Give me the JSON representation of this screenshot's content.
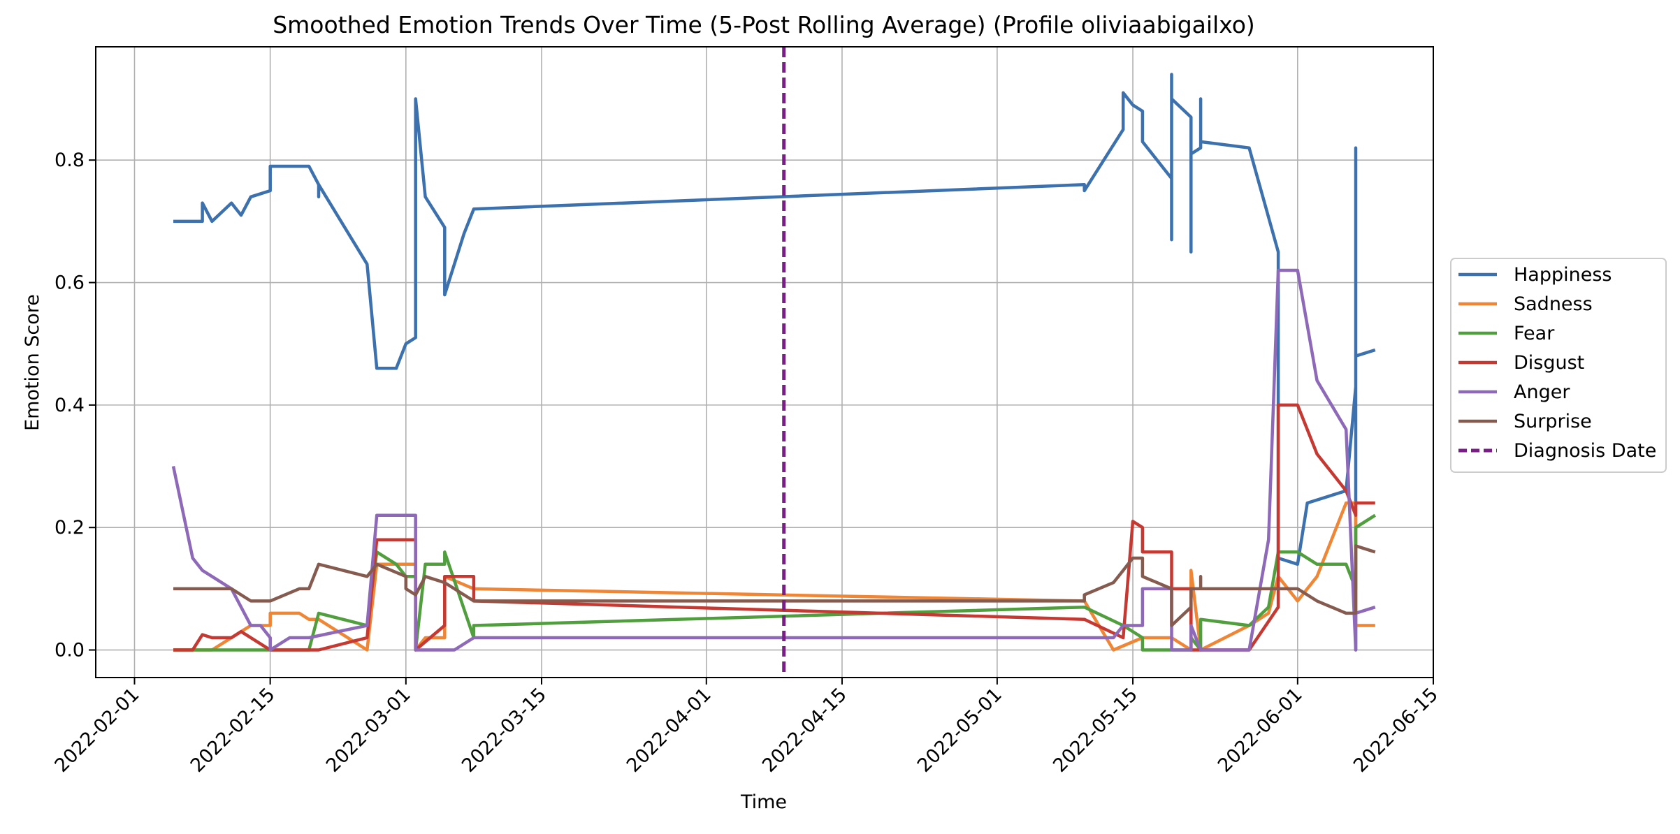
{
  "chart_data": {
    "type": "line",
    "title": "Smoothed Emotion Trends Over Time (5-Post Rolling Average) (Profile oliviaabigailxo)",
    "xlabel": "Time",
    "ylabel": "Emotion Score",
    "xlim": [
      "2022-01-28",
      "2022-06-15"
    ],
    "ylim": [
      -0.045,
      0.985
    ],
    "x_ticks": [
      "2022-02-01",
      "2022-02-15",
      "2022-03-01",
      "2022-03-15",
      "2022-04-01",
      "2022-04-15",
      "2022-05-01",
      "2022-05-15",
      "2022-06-01",
      "2022-06-15"
    ],
    "y_ticks": [
      0.0,
      0.2,
      0.4,
      0.6,
      0.8
    ],
    "grid": true,
    "legend_position": "center-right, outside plot",
    "diagnosis_date": "2022-04-09",
    "series": [
      {
        "name": "Happiness",
        "color": "#3c71ad",
        "points": [
          [
            "2022-02-05",
            0.7
          ],
          [
            "2022-02-08",
            0.7
          ],
          [
            "2022-02-08",
            0.73
          ],
          [
            "2022-02-09",
            0.7
          ],
          [
            "2022-02-11",
            0.73
          ],
          [
            "2022-02-12",
            0.71
          ],
          [
            "2022-02-13",
            0.74
          ],
          [
            "2022-02-15",
            0.75
          ],
          [
            "2022-02-15",
            0.79
          ],
          [
            "2022-02-19",
            0.79
          ],
          [
            "2022-02-20",
            0.76
          ],
          [
            "2022-02-20",
            0.74
          ],
          [
            "2022-02-20",
            0.76
          ],
          [
            "2022-02-25",
            0.63
          ],
          [
            "2022-02-26",
            0.46
          ],
          [
            "2022-02-28",
            0.46
          ],
          [
            "2022-02-29",
            0.5
          ],
          [
            "2022-03-02",
            0.51
          ],
          [
            "2022-03-02",
            0.9
          ],
          [
            "2022-03-03",
            0.74
          ],
          [
            "2022-03-05",
            0.69
          ],
          [
            "2022-03-05",
            0.64
          ],
          [
            "2022-03-05",
            0.58
          ],
          [
            "2022-03-07",
            0.68
          ],
          [
            "2022-03-08",
            0.72
          ],
          [
            "2022-05-10",
            0.76
          ],
          [
            "2022-05-10",
            0.75
          ],
          [
            "2022-05-14",
            0.85
          ],
          [
            "2022-05-14",
            0.91
          ],
          [
            "2022-05-15",
            0.89
          ],
          [
            "2022-05-16",
            0.88
          ],
          [
            "2022-05-16",
            0.83
          ],
          [
            "2022-05-19",
            0.77
          ],
          [
            "2022-05-19",
            0.67
          ],
          [
            "2022-05-19",
            0.94
          ],
          [
            "2022-05-19",
            0.9
          ],
          [
            "2022-05-21",
            0.87
          ],
          [
            "2022-05-21",
            0.8
          ],
          [
            "2022-05-21",
            0.67
          ],
          [
            "2022-05-21",
            0.65
          ],
          [
            "2022-05-21",
            0.81
          ],
          [
            "2022-05-22",
            0.82
          ],
          [
            "2022-05-22",
            0.9
          ],
          [
            "2022-05-22",
            0.83
          ],
          [
            "2022-05-27",
            0.82
          ],
          [
            "2022-05-30",
            0.65
          ],
          [
            "2022-05-30",
            0.15
          ],
          [
            "2022-06-01",
            0.14
          ],
          [
            "2022-06-02",
            0.24
          ],
          [
            "2022-06-06",
            0.26
          ],
          [
            "2022-06-07",
            0.43
          ],
          [
            "2022-06-07",
            0.82
          ],
          [
            "2022-06-07",
            0.0
          ],
          [
            "2022-06-07",
            0.48
          ],
          [
            "2022-06-09",
            0.49
          ]
        ]
      },
      {
        "name": "Sadness",
        "color": "#ef8636",
        "points": [
          [
            "2022-02-05",
            0.0
          ],
          [
            "2022-02-08",
            0.0
          ],
          [
            "2022-02-09",
            0.0
          ],
          [
            "2022-02-12",
            0.03
          ],
          [
            "2022-02-13",
            0.04
          ],
          [
            "2022-02-15",
            0.04
          ],
          [
            "2022-02-15",
            0.06
          ],
          [
            "2022-02-18",
            0.06
          ],
          [
            "2022-02-19",
            0.05
          ],
          [
            "2022-02-20",
            0.05
          ],
          [
            "2022-02-25",
            0.0
          ],
          [
            "2022-02-26",
            0.14
          ],
          [
            "2022-03-02",
            0.14
          ],
          [
            "2022-03-02",
            0.0
          ],
          [
            "2022-03-03",
            0.02
          ],
          [
            "2022-03-05",
            0.02
          ],
          [
            "2022-03-05",
            0.12
          ],
          [
            "2022-03-08",
            0.1
          ],
          [
            "2022-05-10",
            0.08
          ],
          [
            "2022-05-13",
            0.0
          ],
          [
            "2022-05-16",
            0.02
          ],
          [
            "2022-05-19",
            0.02
          ],
          [
            "2022-05-21",
            0.0
          ],
          [
            "2022-05-21",
            0.13
          ],
          [
            "2022-05-22",
            0.0
          ],
          [
            "2022-05-27",
            0.04
          ],
          [
            "2022-05-29",
            0.06
          ],
          [
            "2022-05-30",
            0.12
          ],
          [
            "2022-06-01",
            0.08
          ],
          [
            "2022-06-03",
            0.12
          ],
          [
            "2022-06-06",
            0.24
          ],
          [
            "2022-06-07",
            0.24
          ],
          [
            "2022-06-07",
            0.04
          ],
          [
            "2022-06-09",
            0.04
          ]
        ]
      },
      {
        "name": "Fear",
        "color": "#519e3e",
        "points": [
          [
            "2022-02-05",
            0.0
          ],
          [
            "2022-02-15",
            0.0
          ],
          [
            "2022-02-19",
            0.0
          ],
          [
            "2022-02-20",
            0.06
          ],
          [
            "2022-02-25",
            0.04
          ],
          [
            "2022-02-26",
            0.16
          ],
          [
            "2022-02-28",
            0.14
          ],
          [
            "2022-03-01",
            0.12
          ],
          [
            "2022-03-02",
            0.12
          ],
          [
            "2022-03-02",
            0.0
          ],
          [
            "2022-03-03",
            0.14
          ],
          [
            "2022-03-05",
            0.14
          ],
          [
            "2022-03-05",
            0.16
          ],
          [
            "2022-03-08",
            0.02
          ],
          [
            "2022-03-08",
            0.04
          ],
          [
            "2022-05-10",
            0.07
          ],
          [
            "2022-05-14",
            0.04
          ],
          [
            "2022-05-16",
            0.02
          ],
          [
            "2022-05-16",
            0.0
          ],
          [
            "2022-05-21",
            0.0
          ],
          [
            "2022-05-21",
            0.02
          ],
          [
            "2022-05-22",
            0.0
          ],
          [
            "2022-05-22",
            0.05
          ],
          [
            "2022-05-27",
            0.04
          ],
          [
            "2022-05-29",
            0.07
          ],
          [
            "2022-05-30",
            0.16
          ],
          [
            "2022-06-01",
            0.16
          ],
          [
            "2022-06-03",
            0.14
          ],
          [
            "2022-06-06",
            0.14
          ],
          [
            "2022-06-07",
            0.1
          ],
          [
            "2022-06-07",
            0.2
          ],
          [
            "2022-06-09",
            0.22
          ]
        ]
      },
      {
        "name": "Disgust",
        "color": "#c43932",
        "points": [
          [
            "2022-02-05",
            0.0
          ],
          [
            "2022-02-07",
            0.0
          ],
          [
            "2022-02-08",
            0.025
          ],
          [
            "2022-02-09",
            0.02
          ],
          [
            "2022-02-11",
            0.02
          ],
          [
            "2022-02-12",
            0.03
          ],
          [
            "2022-02-15",
            0.0
          ],
          [
            "2022-02-20",
            0.0
          ],
          [
            "2022-02-25",
            0.02
          ],
          [
            "2022-02-26",
            0.18
          ],
          [
            "2022-03-02",
            0.18
          ],
          [
            "2022-03-02",
            0.0
          ],
          [
            "2022-03-05",
            0.04
          ],
          [
            "2022-03-05",
            0.12
          ],
          [
            "2022-03-08",
            0.12
          ],
          [
            "2022-03-08",
            0.08
          ],
          [
            "2022-05-10",
            0.05
          ],
          [
            "2022-05-14",
            0.02
          ],
          [
            "2022-05-15",
            0.21
          ],
          [
            "2022-05-16",
            0.2
          ],
          [
            "2022-05-16",
            0.16
          ],
          [
            "2022-05-19",
            0.16
          ],
          [
            "2022-05-19",
            0.1
          ],
          [
            "2022-05-21",
            0.1
          ],
          [
            "2022-05-21",
            0.0
          ],
          [
            "2022-05-22",
            0.0
          ],
          [
            "2022-05-27",
            0.0
          ],
          [
            "2022-05-30",
            0.07
          ],
          [
            "2022-05-30",
            0.4
          ],
          [
            "2022-06-01",
            0.4
          ],
          [
            "2022-06-03",
            0.32
          ],
          [
            "2022-06-06",
            0.26
          ],
          [
            "2022-06-07",
            0.22
          ],
          [
            "2022-06-07",
            0.24
          ],
          [
            "2022-06-09",
            0.24
          ]
        ]
      },
      {
        "name": "Anger",
        "color": "#8d69b8",
        "points": [
          [
            "2022-02-05",
            0.3
          ],
          [
            "2022-02-07",
            0.15
          ],
          [
            "2022-02-08",
            0.13
          ],
          [
            "2022-02-09",
            0.12
          ],
          [
            "2022-02-11",
            0.1
          ],
          [
            "2022-02-13",
            0.04
          ],
          [
            "2022-02-14",
            0.04
          ],
          [
            "2022-02-15",
            0.02
          ],
          [
            "2022-02-15",
            0.0
          ],
          [
            "2022-02-17",
            0.02
          ],
          [
            "2022-02-19",
            0.02
          ],
          [
            "2022-02-25",
            0.04
          ],
          [
            "2022-02-26",
            0.22
          ],
          [
            "2022-03-02",
            0.22
          ],
          [
            "2022-03-02",
            0.0
          ],
          [
            "2022-03-06",
            0.0
          ],
          [
            "2022-03-08",
            0.02
          ],
          [
            "2022-05-13",
            0.02
          ],
          [
            "2022-05-14",
            0.04
          ],
          [
            "2022-05-16",
            0.04
          ],
          [
            "2022-05-16",
            0.1
          ],
          [
            "2022-05-19",
            0.1
          ],
          [
            "2022-05-19",
            0.0
          ],
          [
            "2022-05-21",
            0.0
          ],
          [
            "2022-05-21",
            0.04
          ],
          [
            "2022-05-22",
            0.0
          ],
          [
            "2022-05-27",
            0.0
          ],
          [
            "2022-05-29",
            0.18
          ],
          [
            "2022-05-30",
            0.62
          ],
          [
            "2022-06-01",
            0.62
          ],
          [
            "2022-06-03",
            0.44
          ],
          [
            "2022-06-06",
            0.36
          ],
          [
            "2022-06-07",
            0.0
          ],
          [
            "2022-06-07",
            0.06
          ],
          [
            "2022-06-09",
            0.07
          ]
        ]
      },
      {
        "name": "Surprise",
        "color": "#845b4e",
        "points": [
          [
            "2022-02-05",
            0.1
          ],
          [
            "2022-02-11",
            0.1
          ],
          [
            "2022-02-13",
            0.08
          ],
          [
            "2022-02-15",
            0.08
          ],
          [
            "2022-02-18",
            0.1
          ],
          [
            "2022-02-19",
            0.1
          ],
          [
            "2022-02-20",
            0.14
          ],
          [
            "2022-02-25",
            0.12
          ],
          [
            "2022-02-26",
            0.14
          ],
          [
            "2022-02-29",
            0.12
          ],
          [
            "2022-03-01",
            0.1
          ],
          [
            "2022-03-02",
            0.09
          ],
          [
            "2022-03-03",
            0.12
          ],
          [
            "2022-03-05",
            0.11
          ],
          [
            "2022-03-08",
            0.08
          ],
          [
            "2022-05-10",
            0.08
          ],
          [
            "2022-05-10",
            0.09
          ],
          [
            "2022-05-13",
            0.11
          ],
          [
            "2022-05-14",
            0.13
          ],
          [
            "2022-05-15",
            0.15
          ],
          [
            "2022-05-16",
            0.15
          ],
          [
            "2022-05-16",
            0.12
          ],
          [
            "2022-05-19",
            0.1
          ],
          [
            "2022-05-19",
            0.04
          ],
          [
            "2022-05-21",
            0.07
          ],
          [
            "2022-05-21",
            0.1
          ],
          [
            "2022-05-22",
            0.1
          ],
          [
            "2022-05-22",
            0.12
          ],
          [
            "2022-05-22",
            0.1
          ],
          [
            "2022-06-01",
            0.1
          ],
          [
            "2022-06-03",
            0.08
          ],
          [
            "2022-06-06",
            0.06
          ],
          [
            "2022-06-07",
            0.06
          ],
          [
            "2022-06-07",
            0.17
          ],
          [
            "2022-06-09",
            0.16
          ]
        ]
      }
    ],
    "legend": [
      "Happiness",
      "Sadness",
      "Fear",
      "Disgust",
      "Anger",
      "Surprise",
      "Diagnosis Date"
    ],
    "diagnosis_color": "#7b1d87"
  }
}
